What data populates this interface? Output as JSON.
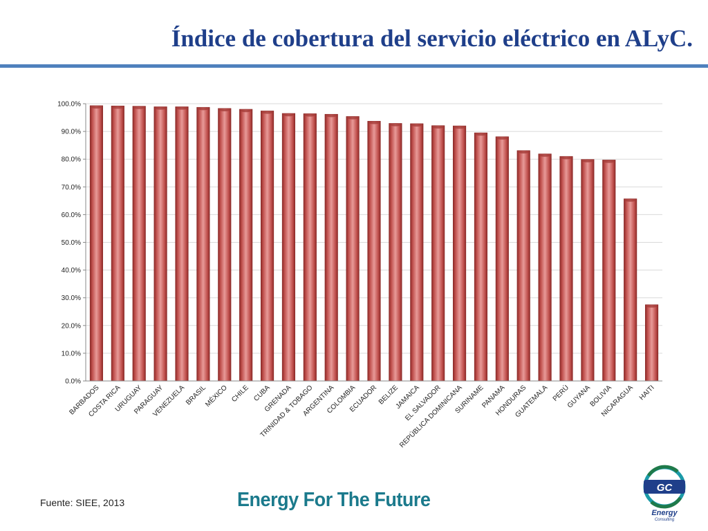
{
  "slide": {
    "title": "Índice de cobertura del servicio eléctrico en ALyC.",
    "source": "Fuente: SIEE, 2013",
    "tagline": "Energy For The Future",
    "logo": {
      "mark": "GC",
      "name": "Energy",
      "subname": "Consulting",
      "icon": "gc-energy-logo-icon"
    }
  },
  "colors": {
    "bar": "#c0504d",
    "bar_dark": "#8c2a28",
    "title": "#1f3f8a",
    "rule": "#4f81bd",
    "tagline": "#1b7a8c"
  },
  "chart_data": {
    "type": "bar",
    "title": "",
    "xlabel": "",
    "ylabel": "",
    "ylim": [
      0,
      100
    ],
    "yticks": [
      "0.0%",
      "10.0%",
      "20.0%",
      "30.0%",
      "40.0%",
      "50.0%",
      "60.0%",
      "70.0%",
      "80.0%",
      "90.0%",
      "100.0%"
    ],
    "grid": true,
    "legend": "none",
    "categories": [
      "BARBADOS",
      "COSTA RICA",
      "URUGUAY",
      "PARAGUAY",
      "VENEZUELA",
      "BRASIL",
      "MÉXICO",
      "CHILE",
      "CUBA",
      "GRENADA",
      "TRINIDAD & TOBAGO",
      "ARGENTINA",
      "COLOMBIA",
      "ECUADOR",
      "BELIZE",
      "JAMAICA",
      "EL SALVADOR",
      "REPÚBLICA DOMINICANA",
      "SURINAME",
      "PANAMA",
      "HONDURAS",
      "GUATEMALA",
      "PERÚ",
      "GUYANA",
      "BOLIVIA",
      "NICARAGUA",
      "HAITI"
    ],
    "values": [
      99.3,
      99.2,
      99.1,
      98.9,
      98.9,
      98.7,
      98.3,
      98.0,
      97.4,
      96.5,
      96.4,
      96.2,
      95.4,
      93.7,
      92.9,
      92.8,
      92.1,
      92.0,
      89.5,
      88.1,
      83.1,
      81.9,
      81.0,
      79.9,
      79.7,
      65.7,
      27.5
    ]
  }
}
